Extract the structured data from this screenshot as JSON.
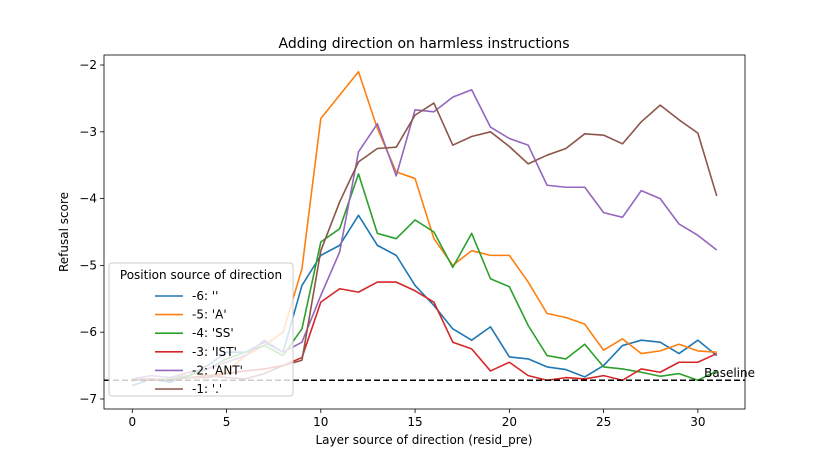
{
  "chart_data": {
    "type": "line",
    "title": "Adding direction on harmless instructions",
    "xlabel": "Layer source of direction (resid_pre)",
    "ylabel": "Refusal score",
    "xlim": [
      -1.5,
      32.5
    ],
    "ylim": [
      -7.15,
      -1.85
    ],
    "xticks": [
      0,
      5,
      10,
      15,
      20,
      25,
      30
    ],
    "xtick_labels": [
      "0",
      "5",
      "10",
      "15",
      "20",
      "25",
      "30"
    ],
    "yticks": [
      -7,
      -6,
      -5,
      -4,
      -3,
      -2
    ],
    "ytick_labels": [
      "−7",
      "−6",
      "−5",
      "−4",
      "−3",
      "−2"
    ],
    "grid": false,
    "legend": {
      "title": "Position source of direction",
      "placement": "lower-left"
    },
    "baseline": {
      "label": "Baseline",
      "y": -6.72,
      "style": "dashed",
      "color": "#000000"
    },
    "x": [
      0,
      1,
      2,
      3,
      4,
      5,
      6,
      7,
      8,
      9,
      10,
      11,
      12,
      13,
      14,
      15,
      16,
      17,
      18,
      19,
      20,
      21,
      22,
      23,
      24,
      25,
      26,
      27,
      28,
      29,
      30,
      31
    ],
    "series": [
      {
        "name": "-6: ''",
        "color": "#1f77b4",
        "values": [
          -6.8,
          -6.7,
          -6.75,
          -6.65,
          -6.5,
          -6.3,
          -6.3,
          -6.15,
          -6.3,
          -5.3,
          -4.85,
          -4.7,
          -4.25,
          -4.7,
          -4.85,
          -5.3,
          -5.6,
          -5.95,
          -6.12,
          -5.92,
          -6.37,
          -6.4,
          -6.52,
          -6.56,
          -6.67,
          -6.5,
          -6.2,
          -6.12,
          -6.15,
          -6.32,
          -6.12,
          -6.35
        ]
      },
      {
        "name": "-5: 'A'",
        "color": "#ff7f0e",
        "values": [
          -6.7,
          -6.7,
          -6.72,
          -6.6,
          -6.65,
          -6.6,
          -6.35,
          -6.2,
          -6.0,
          -5.05,
          -2.8,
          -2.45,
          -2.1,
          -2.95,
          -3.6,
          -3.7,
          -4.6,
          -5.0,
          -4.78,
          -4.85,
          -4.85,
          -5.25,
          -5.72,
          -5.78,
          -5.88,
          -6.27,
          -6.1,
          -6.32,
          -6.28,
          -6.18,
          -6.28,
          -6.3
        ]
      },
      {
        "name": "-4: 'SS'",
        "color": "#2ca02c",
        "values": [
          -6.7,
          -6.72,
          -6.7,
          -6.65,
          -6.55,
          -6.4,
          -6.3,
          -6.2,
          -6.35,
          -5.95,
          -4.65,
          -4.45,
          -3.63,
          -4.52,
          -4.6,
          -4.32,
          -4.5,
          -5.03,
          -4.52,
          -5.2,
          -5.32,
          -5.9,
          -6.35,
          -6.4,
          -6.18,
          -6.52,
          -6.55,
          -6.6,
          -6.66,
          -6.62,
          -6.72,
          -6.58
        ]
      },
      {
        "name": "-3: 'IST'",
        "color": "#d62728",
        "values": [
          -6.7,
          -6.72,
          -6.72,
          -6.68,
          -6.68,
          -6.62,
          -6.58,
          -6.55,
          -6.5,
          -6.38,
          -5.55,
          -5.35,
          -5.4,
          -5.25,
          -5.25,
          -5.38,
          -5.55,
          -6.15,
          -6.25,
          -6.58,
          -6.45,
          -6.65,
          -6.72,
          -6.68,
          -6.7,
          -6.65,
          -6.72,
          -6.55,
          -6.6,
          -6.45,
          -6.45,
          -6.32
        ]
      },
      {
        "name": "-2: 'ANT'",
        "color": "#9467bd",
        "values": [
          -6.7,
          -6.65,
          -6.68,
          -6.6,
          -6.55,
          -6.45,
          -6.35,
          -6.12,
          -6.3,
          -6.15,
          -5.45,
          -4.8,
          -3.3,
          -2.88,
          -3.66,
          -2.67,
          -2.7,
          -2.48,
          -2.37,
          -2.93,
          -3.1,
          -3.2,
          -3.8,
          -3.83,
          -3.83,
          -4.21,
          -4.28,
          -3.88,
          -4.0,
          -4.38,
          -4.55,
          -4.77
        ]
      },
      {
        "name": "-1: '.'",
        "color": "#8c564b",
        "values": [
          -6.72,
          -6.7,
          -6.72,
          -6.68,
          -6.65,
          -6.68,
          -6.7,
          -6.62,
          -6.5,
          -6.42,
          -4.78,
          -4.05,
          -3.45,
          -3.25,
          -3.23,
          -2.75,
          -2.57,
          -3.2,
          -3.07,
          -3.0,
          -3.22,
          -3.48,
          -3.35,
          -3.25,
          -3.03,
          -3.05,
          -3.18,
          -2.85,
          -2.6,
          -2.82,
          -3.02,
          -3.96
        ]
      }
    ]
  }
}
